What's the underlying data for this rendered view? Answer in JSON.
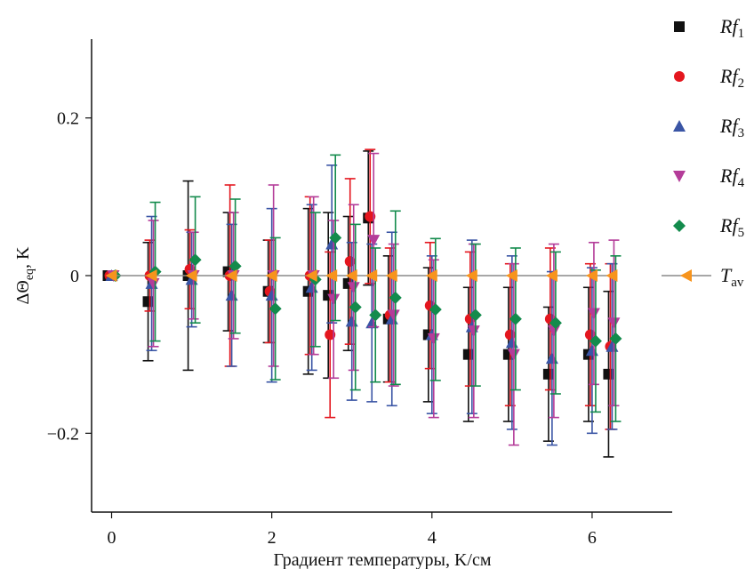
{
  "chart_data": {
    "type": "scatter",
    "xlabel": "Градиент температуры, K/см",
    "ylabel": {
      "main": "ΔΘ",
      "sub": "eq",
      "suffix": ", K"
    },
    "xlim": [
      -0.25,
      7.0
    ],
    "ylim": [
      -0.3,
      0.3
    ],
    "x_ticks": [
      0,
      2,
      4,
      6
    ],
    "x_tick_labels": [
      "0",
      "2",
      "4",
      "6"
    ],
    "y_ticks": [
      0.2,
      0,
      -0.2
    ],
    "y_tick_labels": [
      "0.2",
      "0",
      "−0.2"
    ],
    "grid": false,
    "legend_position": "right",
    "series": [
      {
        "name": "Rf",
        "name_sub": "1",
        "marker": "square",
        "color": "#111111",
        "x": [
          0,
          0.5,
          1.0,
          1.5,
          2.0,
          2.5,
          2.75,
          3.0,
          3.25,
          3.5,
          4.0,
          4.5,
          5.0,
          5.5,
          6.0,
          6.25
        ],
        "y": [
          0,
          -0.033,
          0.0,
          0.005,
          -0.02,
          -0.02,
          -0.025,
          -0.01,
          0.073,
          -0.055,
          -0.075,
          -0.1,
          -0.1,
          -0.125,
          -0.1,
          -0.125
        ],
        "err": [
          0,
          0.075,
          0.12,
          0.075,
          0.065,
          0.105,
          0.105,
          0.085,
          0.085,
          0.08,
          0.085,
          0.085,
          0.085,
          0.085,
          0.085,
          0.105
        ]
      },
      {
        "name": "Rf",
        "name_sub": "2",
        "marker": "circle",
        "color": "#e4161e",
        "x": [
          0,
          0.5,
          1.0,
          1.5,
          2.0,
          2.5,
          2.75,
          3.0,
          3.25,
          3.5,
          4.0,
          4.5,
          5.0,
          5.5,
          6.0,
          6.25
        ],
        "y": [
          0,
          0.0,
          0.008,
          0.0,
          -0.02,
          0.0,
          -0.075,
          0.018,
          0.075,
          -0.05,
          -0.038,
          -0.055,
          -0.075,
          -0.055,
          -0.075,
          -0.09
        ],
        "err": [
          0,
          0.045,
          0.05,
          0.115,
          0.065,
          0.1,
          0.105,
          0.105,
          0.085,
          0.085,
          0.08,
          0.085,
          0.09,
          0.09,
          0.09,
          0.105
        ]
      },
      {
        "name": "Rf",
        "name_sub": "3",
        "marker": "triangle-up",
        "color": "#3a55a5",
        "x": [
          0,
          0.5,
          1.0,
          1.5,
          2.0,
          2.5,
          2.75,
          3.0,
          3.25,
          3.5,
          4.0,
          4.5,
          5.0,
          5.5,
          6.0,
          6.25
        ],
        "y": [
          0,
          -0.01,
          -0.005,
          -0.025,
          -0.025,
          -0.015,
          0.04,
          -0.058,
          -0.06,
          -0.055,
          -0.075,
          -0.065,
          -0.085,
          -0.105,
          -0.095,
          -0.09
        ],
        "err": [
          0,
          0.085,
          0.06,
          0.09,
          0.11,
          0.105,
          0.1,
          0.1,
          0.1,
          0.11,
          0.1,
          0.11,
          0.11,
          0.11,
          0.105,
          0.105
        ]
      },
      {
        "name": "Rf",
        "name_sub": "4",
        "marker": "triangle-down",
        "color": "#b43c99",
        "x": [
          0,
          0.5,
          1.0,
          1.5,
          2.0,
          2.5,
          2.75,
          3.0,
          3.25,
          3.5,
          4.0,
          4.5,
          5.0,
          5.5,
          6.0,
          6.25
        ],
        "y": [
          0,
          -0.01,
          0.0,
          0.0,
          0.0,
          0.0,
          -0.03,
          -0.015,
          0.045,
          -0.05,
          -0.08,
          -0.07,
          -0.1,
          -0.07,
          -0.048,
          -0.06
        ],
        "err": [
          0,
          0.08,
          0.055,
          0.08,
          0.115,
          0.1,
          0.1,
          0.105,
          0.11,
          0.09,
          0.1,
          0.11,
          0.115,
          0.11,
          0.09,
          0.105
        ]
      },
      {
        "name": "Rf",
        "name_sub": "5",
        "marker": "diamond",
        "color": "#138b4c",
        "x": [
          0,
          0.5,
          1.0,
          1.5,
          2.0,
          2.5,
          2.75,
          3.0,
          3.25,
          3.5,
          4.0,
          4.5,
          5.0,
          5.5,
          6.0,
          6.25
        ],
        "y": [
          0,
          0.005,
          0.02,
          0.012,
          -0.042,
          -0.005,
          0.048,
          -0.04,
          -0.05,
          -0.028,
          -0.043,
          -0.05,
          -0.055,
          -0.06,
          -0.083,
          -0.08
        ],
        "err": [
          0,
          0.088,
          0.08,
          0.085,
          0.09,
          0.085,
          0.105,
          0.105,
          0.085,
          0.11,
          0.09,
          0.09,
          0.09,
          0.09,
          0.09,
          0.105
        ]
      },
      {
        "name": "T",
        "name_sub": "av",
        "marker": "triangle-left",
        "color": "#f7941d",
        "line_color": "#8a8a8a",
        "connect": true,
        "x": [
          0,
          0.5,
          1.0,
          1.5,
          2.0,
          2.5,
          2.75,
          3.0,
          3.25,
          3.5,
          4.0,
          4.5,
          5.0,
          5.5,
          6.0,
          6.25
        ],
        "y": [
          0,
          0,
          0,
          0,
          0,
          0,
          0,
          0,
          0,
          0,
          0,
          0,
          0,
          0,
          0,
          0
        ],
        "err": [
          0,
          0,
          0,
          0,
          0,
          0,
          0,
          0,
          0,
          0,
          0,
          0,
          0,
          0,
          0,
          0
        ]
      }
    ]
  }
}
